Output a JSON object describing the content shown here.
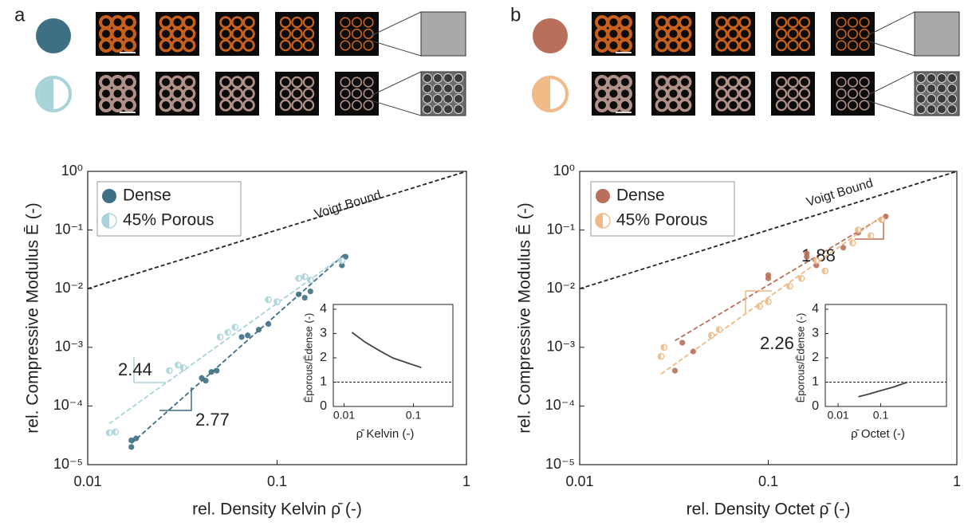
{
  "chart_data": [
    {
      "type": "scatter",
      "panel": "a",
      "xlabel": "rel. Density Kelvin  ρ̄ (-)",
      "ylabel": "rel. Compressive Modulus  Ē (-)",
      "xscale": "log",
      "yscale": "log",
      "xlim": [
        0.01,
        1
      ],
      "ylim": [
        1e-05,
        1
      ],
      "xticks": [
        0.01,
        0.1,
        1
      ],
      "yticks": [
        {
          "value": 1e-05,
          "label": "10⁻⁵"
        },
        {
          "value": 0.0001,
          "label": "10⁻⁴"
        },
        {
          "value": 0.001,
          "label": "10⁻³"
        },
        {
          "value": 0.01,
          "label": "10⁻²"
        },
        {
          "value": 0.1,
          "label": "10⁻¹"
        },
        {
          "value": 1,
          "label": "10⁰"
        }
      ],
      "legend": "upper left",
      "series": [
        {
          "name": "Dense",
          "color": "#3e6f84",
          "marker": "full",
          "x": [
            0.017,
            0.017,
            0.018,
            0.04,
            0.042,
            0.045,
            0.048,
            0.065,
            0.07,
            0.08,
            0.09,
            0.13,
            0.14,
            0.15,
            0.22,
            0.23
          ],
          "values": [
            2.6e-05,
            2e-05,
            2.8e-05,
            0.0003,
            0.00027,
            0.00038,
            0.0004,
            0.0015,
            0.0016,
            0.002,
            0.0025,
            0.008,
            0.007,
            0.009,
            0.025,
            0.035
          ]
        },
        {
          "name": "45% Porous",
          "color": "#a8d3d8",
          "marker": "half",
          "x": [
            0.013,
            0.014,
            0.027,
            0.03,
            0.032,
            0.05,
            0.055,
            0.06,
            0.09,
            0.1,
            0.13,
            0.14,
            0.15,
            0.22
          ],
          "values": [
            3.5e-05,
            3.6e-05,
            0.0004,
            0.0005,
            0.00045,
            0.0015,
            0.0018,
            0.0022,
            0.0065,
            0.006,
            0.015,
            0.016,
            0.014,
            0.03
          ]
        }
      ],
      "fits": [
        {
          "color": "#3e6f84",
          "x": [
            0.017,
            0.23
          ],
          "values": [
            2.3e-05,
            0.04
          ],
          "label": "2.77"
        },
        {
          "color": "#a8d3d8",
          "x": [
            0.013,
            0.22
          ],
          "values": [
            5e-05,
            0.035
          ],
          "label": "2.44"
        }
      ],
      "reference": {
        "name": "Voigt Bound",
        "x": [
          0.01,
          1
        ],
        "values": [
          0.01,
          1
        ]
      },
      "inset": {
        "type": "line",
        "xlabel": "ρ̄   Kelvin (-)",
        "ylabel": "Ēporous/Ēdense (-)",
        "xscale": "log",
        "xlim": [
          0.007,
          0.37
        ],
        "ylim": [
          0,
          4
        ],
        "xticks": [
          0.01,
          0.1
        ],
        "yticks": [
          0,
          1,
          2,
          3,
          4
        ],
        "reference_y": 1,
        "color": "#444444",
        "x": [
          0.013,
          0.02,
          0.03,
          0.05,
          0.08,
          0.13
        ],
        "values": [
          3.05,
          2.65,
          2.35,
          2.0,
          1.8,
          1.6
        ]
      }
    },
    {
      "type": "scatter",
      "panel": "b",
      "xlabel": "rel. Density Octet  ρ̄ (-)",
      "ylabel": "rel. Compressive Modulus  Ē (-)",
      "xscale": "log",
      "yscale": "log",
      "xlim": [
        0.01,
        1
      ],
      "ylim": [
        1e-05,
        1
      ],
      "xticks": [
        0.01,
        0.1,
        1
      ],
      "yticks": [
        {
          "value": 1e-05,
          "label": "10⁻⁵"
        },
        {
          "value": 0.0001,
          "label": "10⁻⁴"
        },
        {
          "value": 0.001,
          "label": "10⁻³"
        },
        {
          "value": 0.01,
          "label": "10⁻²"
        },
        {
          "value": 0.1,
          "label": "10⁻¹"
        },
        {
          "value": 1,
          "label": "10⁰"
        }
      ],
      "legend": "upper left",
      "series": [
        {
          "name": "Dense",
          "color": "#b8705a",
          "marker": "full",
          "x": [
            0.032,
            0.035,
            0.04,
            0.1,
            0.1,
            0.16,
            0.16,
            0.18,
            0.25,
            0.3,
            0.4,
            0.42
          ],
          "values": [
            0.0004,
            0.0012,
            0.00085,
            0.015,
            0.017,
            0.04,
            0.035,
            0.025,
            0.05,
            0.09,
            0.15,
            0.17
          ]
        },
        {
          "name": "45% Porous",
          "color": "#f0b985",
          "marker": "half",
          "x": [
            0.027,
            0.028,
            0.05,
            0.055,
            0.09,
            0.1,
            0.13,
            0.15,
            0.18,
            0.2,
            0.28,
            0.3,
            0.35,
            0.4
          ],
          "values": [
            0.0007,
            0.001,
            0.0016,
            0.002,
            0.005,
            0.006,
            0.011,
            0.015,
            0.03,
            0.02,
            0.06,
            0.1,
            0.08,
            0.15
          ]
        }
      ],
      "fits": [
        {
          "color": "#b8705a",
          "x": [
            0.032,
            0.42
          ],
          "values": [
            0.0013,
            0.18
          ],
          "label": "1.88"
        },
        {
          "color": "#f0b985",
          "x": [
            0.027,
            0.4
          ],
          "values": [
            0.00035,
            0.17
          ],
          "label": "2.26"
        }
      ],
      "reference": {
        "name": "Voigt Bound",
        "x": [
          0.01,
          1
        ],
        "values": [
          0.01,
          1
        ]
      },
      "inset": {
        "type": "line",
        "xlabel": "ρ̄   Octet (-)",
        "ylabel": "Ēporous/Ēdense (-)",
        "xscale": "log",
        "xlim": [
          0.005,
          3.5
        ],
        "ylim": [
          0,
          4
        ],
        "xticks": [
          0.01,
          0.1
        ],
        "yticks": [
          0,
          1,
          2,
          3,
          4
        ],
        "reference_y": 1,
        "color": "#444444",
        "x": [
          0.03,
          0.05,
          0.1,
          0.2,
          0.42
        ],
        "values": [
          0.4,
          0.5,
          0.65,
          0.8,
          1.0
        ]
      }
    }
  ]
}
